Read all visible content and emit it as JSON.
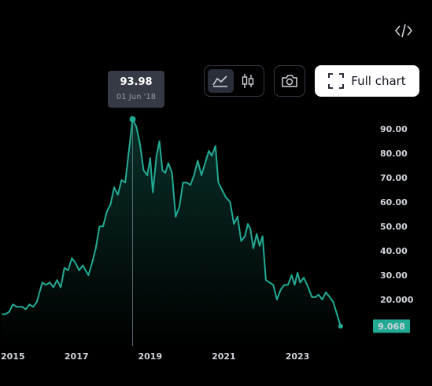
{
  "toolbar": {
    "embed_icon": "code-icon",
    "area_icon": "area-chart-icon",
    "candle_icon": "candlestick-icon",
    "snapshot_icon": "camera-icon",
    "fullscreen_icon": "expand-icon",
    "full_chart_label": "Full chart"
  },
  "tooltip": {
    "value": "93.98",
    "date": "01 Jun '18"
  },
  "chart_data": {
    "type": "area",
    "title": "",
    "xlabel": "",
    "ylabel": "",
    "x_ticks": [
      "2015",
      "2017",
      "2019",
      "2021",
      "2023"
    ],
    "y_ticks": [
      "90.00",
      "80.00",
      "70.00",
      "60.00",
      "50.00",
      "40.00",
      "30.00",
      "20.000"
    ],
    "ylim": [
      5,
      96
    ],
    "xlim": [
      2015.0,
      2024.7
    ],
    "last_value_label": "9.068",
    "line_color": "#22ab94",
    "grid": false,
    "series": [
      {
        "points": [
          [
            2015.0,
            14
          ],
          [
            2015.1,
            14
          ],
          [
            2015.2,
            15
          ],
          [
            2015.3,
            18
          ],
          [
            2015.4,
            17
          ],
          [
            2015.55,
            17
          ],
          [
            2015.65,
            16
          ],
          [
            2015.75,
            18
          ],
          [
            2015.85,
            17
          ],
          [
            2015.95,
            19
          ],
          [
            2016.1,
            27
          ],
          [
            2016.2,
            26
          ],
          [
            2016.3,
            27
          ],
          [
            2016.4,
            25
          ],
          [
            2016.5,
            28
          ],
          [
            2016.6,
            25
          ],
          [
            2016.7,
            33
          ],
          [
            2016.8,
            32
          ],
          [
            2016.9,
            37
          ],
          [
            2017.0,
            35
          ],
          [
            2017.1,
            32
          ],
          [
            2017.2,
            34
          ],
          [
            2017.35,
            30
          ],
          [
            2017.45,
            35
          ],
          [
            2017.55,
            41
          ],
          [
            2017.65,
            50
          ],
          [
            2017.75,
            50
          ],
          [
            2017.85,
            56
          ],
          [
            2017.95,
            59
          ],
          [
            2018.05,
            66
          ],
          [
            2018.15,
            63
          ],
          [
            2018.25,
            69
          ],
          [
            2018.35,
            68
          ],
          [
            2018.45,
            81
          ],
          [
            2018.55,
            93.98
          ],
          [
            2018.65,
            91
          ],
          [
            2018.75,
            84
          ],
          [
            2018.85,
            73
          ],
          [
            2018.95,
            71
          ],
          [
            2019.03,
            78
          ],
          [
            2019.1,
            64
          ],
          [
            2019.2,
            79
          ],
          [
            2019.28,
            85
          ],
          [
            2019.36,
            73
          ],
          [
            2019.44,
            72
          ],
          [
            2019.52,
            76
          ],
          [
            2019.62,
            72
          ],
          [
            2019.72,
            54
          ],
          [
            2019.82,
            58
          ],
          [
            2019.92,
            68
          ],
          [
            2020.02,
            68
          ],
          [
            2020.12,
            67
          ],
          [
            2020.22,
            71
          ],
          [
            2020.32,
            77
          ],
          [
            2020.42,
            71
          ],
          [
            2020.52,
            76
          ],
          [
            2020.62,
            81
          ],
          [
            2020.7,
            79
          ],
          [
            2020.8,
            83
          ],
          [
            2020.88,
            68
          ],
          [
            2020.98,
            65
          ],
          [
            2021.08,
            62
          ],
          [
            2021.2,
            60
          ],
          [
            2021.3,
            51
          ],
          [
            2021.4,
            54
          ],
          [
            2021.5,
            44
          ],
          [
            2021.6,
            46
          ],
          [
            2021.68,
            51
          ],
          [
            2021.75,
            49
          ],
          [
            2021.83,
            41
          ],
          [
            2021.92,
            47
          ],
          [
            2022.0,
            42
          ],
          [
            2022.08,
            46
          ],
          [
            2022.17,
            28
          ],
          [
            2022.27,
            27
          ],
          [
            2022.37,
            26
          ],
          [
            2022.47,
            20
          ],
          [
            2022.57,
            24
          ],
          [
            2022.67,
            26
          ],
          [
            2022.77,
            26
          ],
          [
            2022.87,
            30
          ],
          [
            2022.95,
            26
          ],
          [
            2023.03,
            31
          ],
          [
            2023.1,
            27
          ],
          [
            2023.2,
            29
          ],
          [
            2023.32,
            25
          ],
          [
            2023.42,
            21
          ],
          [
            2023.52,
            21
          ],
          [
            2023.6,
            22
          ],
          [
            2023.7,
            20
          ],
          [
            2023.8,
            23
          ],
          [
            2023.9,
            21
          ],
          [
            2024.0,
            19
          ],
          [
            2024.1,
            14
          ],
          [
            2024.2,
            9.068
          ]
        ]
      }
    ]
  }
}
